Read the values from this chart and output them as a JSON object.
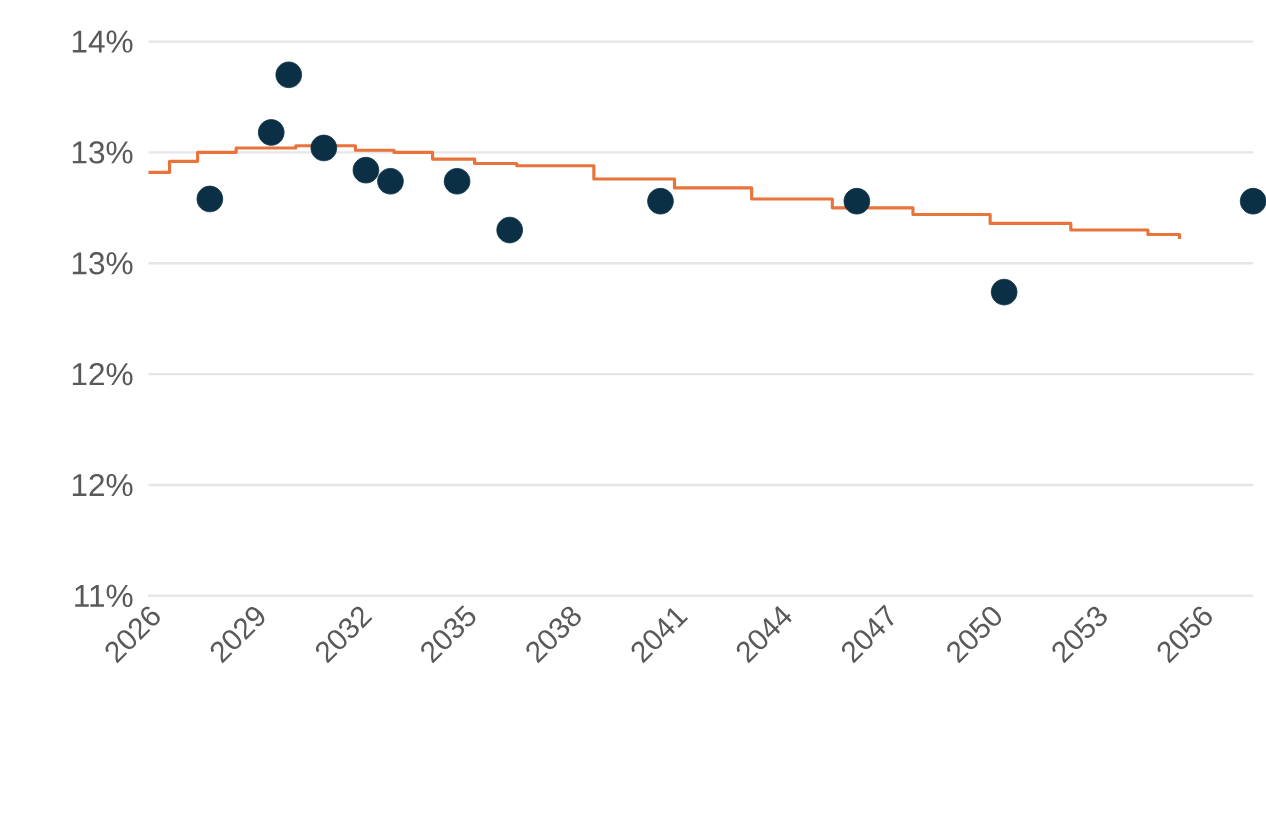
{
  "chart_data": {
    "type": "scatter",
    "xlim": [
      2026,
      2057.5
    ],
    "xticks": [
      2026,
      2029,
      2032,
      2035,
      2038,
      2041,
      2044,
      2047,
      2050,
      2053,
      2056
    ],
    "ylim": [
      11,
      13.5
    ],
    "yticks": [
      {
        "value": 11,
        "label": "11%"
      },
      {
        "value": 11.5,
        "label": "12%"
      },
      {
        "value": 12,
        "label": "12%"
      },
      {
        "value": 12.5,
        "label": "13%"
      },
      {
        "value": 13,
        "label": "13%"
      },
      {
        "value": 13.5,
        "label": "14%"
      }
    ],
    "grid": "y",
    "series": [
      {
        "type": "scatter",
        "marker": "circle",
        "color": "#0b3045",
        "x": [
          2027.75,
          2029.5,
          2030.0,
          2031.0,
          2032.2,
          2032.9,
          2034.8,
          2036.3,
          2040.6,
          2046.2,
          2050.4,
          2057.5
        ],
        "values": [
          12.79,
          13.09,
          13.35,
          13.02,
          12.92,
          12.87,
          12.87,
          12.65,
          12.78,
          12.78,
          12.37,
          12.78
        ]
      },
      {
        "type": "step",
        "color": "#e8743b",
        "x": [
          2026.0,
          2026.6,
          2027.4,
          2028.5,
          2030.2,
          2031.9,
          2033.0,
          2034.1,
          2035.3,
          2036.5,
          2038.7,
          2041.0,
          2043.2,
          2045.5,
          2047.8,
          2050.0,
          2052.3,
          2054.5,
          2055.4
        ],
        "values": [
          12.91,
          12.96,
          13.0,
          13.02,
          13.03,
          13.01,
          13.0,
          12.97,
          12.95,
          12.94,
          12.88,
          12.84,
          12.79,
          12.75,
          12.72,
          12.68,
          12.65,
          12.63,
          12.61
        ]
      }
    ]
  }
}
